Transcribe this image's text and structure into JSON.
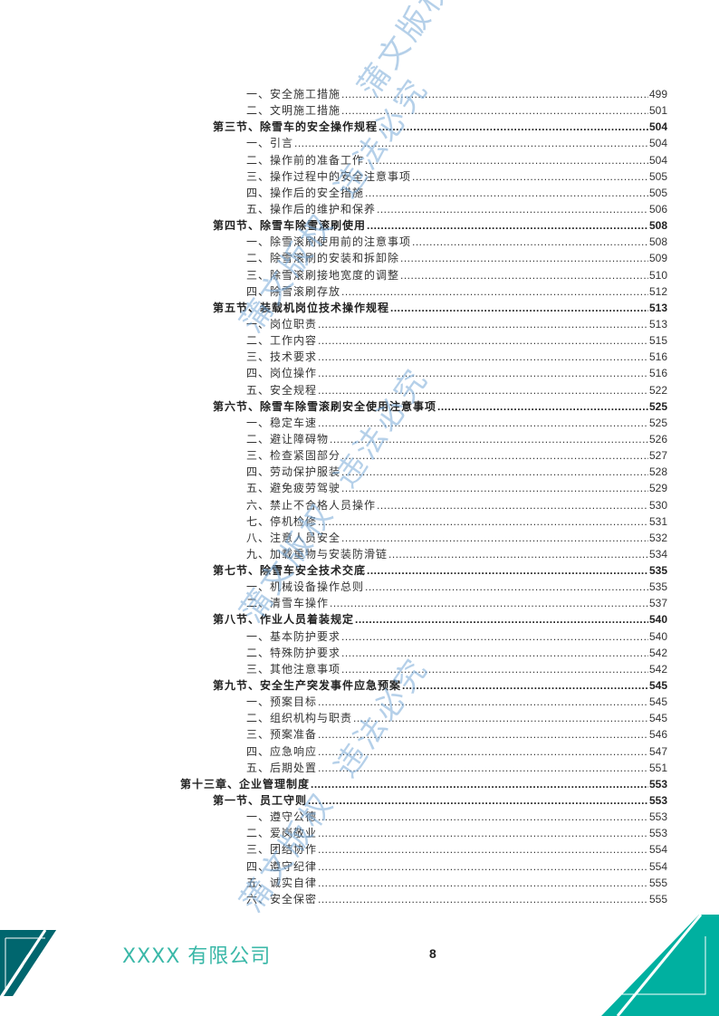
{
  "toc": [
    {
      "level": 2,
      "title": "一、安全施工措施",
      "page": "499"
    },
    {
      "level": 2,
      "title": "二、文明施工措施",
      "page": "501"
    },
    {
      "level": 1,
      "title": "第三节、除雪车的安全操作规程",
      "page": "504"
    },
    {
      "level": 2,
      "title": "一、引言",
      "page": "504"
    },
    {
      "level": 2,
      "title": "二、操作前的准备工作",
      "page": "504"
    },
    {
      "level": 2,
      "title": "三、操作过程中的安全注意事项",
      "page": "505"
    },
    {
      "level": 2,
      "title": "四、操作后的安全措施",
      "page": "505"
    },
    {
      "level": 2,
      "title": "五、操作后的维护和保养",
      "page": "506"
    },
    {
      "level": 1,
      "title": "第四节、除雪车除雪滚刷使用",
      "page": "508"
    },
    {
      "level": 2,
      "title": "一、除雪滚刷使用前的注意事项",
      "page": "508"
    },
    {
      "level": 2,
      "title": "二、除雪滚刷的安装和拆卸除",
      "page": "509"
    },
    {
      "level": 2,
      "title": "三、除雪滚刷接地宽度的调整",
      "page": "510"
    },
    {
      "level": 2,
      "title": "四、除雪滚刷存放",
      "page": "512"
    },
    {
      "level": 1,
      "title": "第五节、装载机岗位技术操作规程",
      "page": "513"
    },
    {
      "level": 2,
      "title": "一、岗位职责",
      "page": "513"
    },
    {
      "level": 2,
      "title": "二、工作内容",
      "page": "515"
    },
    {
      "level": 2,
      "title": "三、技术要求",
      "page": "516"
    },
    {
      "level": 2,
      "title": "四、岗位操作",
      "page": "516"
    },
    {
      "level": 2,
      "title": "五、安全规程",
      "page": "522"
    },
    {
      "level": 1,
      "title": "第六节、除雪车除雪滚刷安全使用注意事项",
      "page": "525"
    },
    {
      "level": 2,
      "title": "一、稳定车速",
      "page": "525"
    },
    {
      "level": 2,
      "title": "二、避让障碍物",
      "page": "526"
    },
    {
      "level": 2,
      "title": "三、检查紧固部分",
      "page": "527"
    },
    {
      "level": 2,
      "title": "四、劳动保护服装",
      "page": "528"
    },
    {
      "level": 2,
      "title": "五、避免疲劳驾驶",
      "page": "529"
    },
    {
      "level": 2,
      "title": "六、禁止不合格人员操作",
      "page": "530"
    },
    {
      "level": 2,
      "title": "七、停机检修",
      "page": "531"
    },
    {
      "level": 2,
      "title": "八、注意人员安全",
      "page": "532"
    },
    {
      "level": 2,
      "title": "九、加载重物与安装防滑链",
      "page": "534"
    },
    {
      "level": 1,
      "title": "第七节、除雪车安全技术交底",
      "page": "535"
    },
    {
      "level": 2,
      "title": "一、机械设备操作总则",
      "page": "535"
    },
    {
      "level": 2,
      "title": "二、清雪车操作",
      "page": "537"
    },
    {
      "level": 1,
      "title": "第八节、作业人员着装规定",
      "page": "540"
    },
    {
      "level": 2,
      "title": "一、基本防护要求",
      "page": "540"
    },
    {
      "level": 2,
      "title": "二、特殊防护要求",
      "page": "542"
    },
    {
      "level": 2,
      "title": "三、其他注意事项",
      "page": "542"
    },
    {
      "level": 1,
      "title": "第九节、安全生产突发事件应急预案",
      "page": "545"
    },
    {
      "level": 2,
      "title": "一、预案目标",
      "page": "545"
    },
    {
      "level": 2,
      "title": "二、组织机构与职责",
      "page": "545"
    },
    {
      "level": 2,
      "title": "三、预案准备",
      "page": "546"
    },
    {
      "level": 2,
      "title": "四、应急响应",
      "page": "547"
    },
    {
      "level": 2,
      "title": "五、后期处置",
      "page": "551"
    },
    {
      "level": 0,
      "title": "第十三章、企业管理制度",
      "page": "553"
    },
    {
      "level": 1,
      "title": "第一节、员工守则",
      "page": "553"
    },
    {
      "level": 2,
      "title": "一、遵守公德",
      "page": "553"
    },
    {
      "level": 2,
      "title": "二、爱岗敬业",
      "page": "553"
    },
    {
      "level": 2,
      "title": "三、团结协作",
      "page": "554"
    },
    {
      "level": 2,
      "title": "四、遵守纪律",
      "page": "554"
    },
    {
      "level": 2,
      "title": "五、诚实自律",
      "page": "555"
    },
    {
      "level": 2,
      "title": "六、安全保密",
      "page": "555"
    }
  ],
  "footer": {
    "company": "XXXX 有限公司",
    "page_number": "8"
  },
  "watermark": {
    "text": "蒲文版权 违法必究"
  },
  "colors": {
    "footer_dark": "#00666e",
    "footer_teal": "#00b0a0",
    "watermark": "#78aad7"
  }
}
